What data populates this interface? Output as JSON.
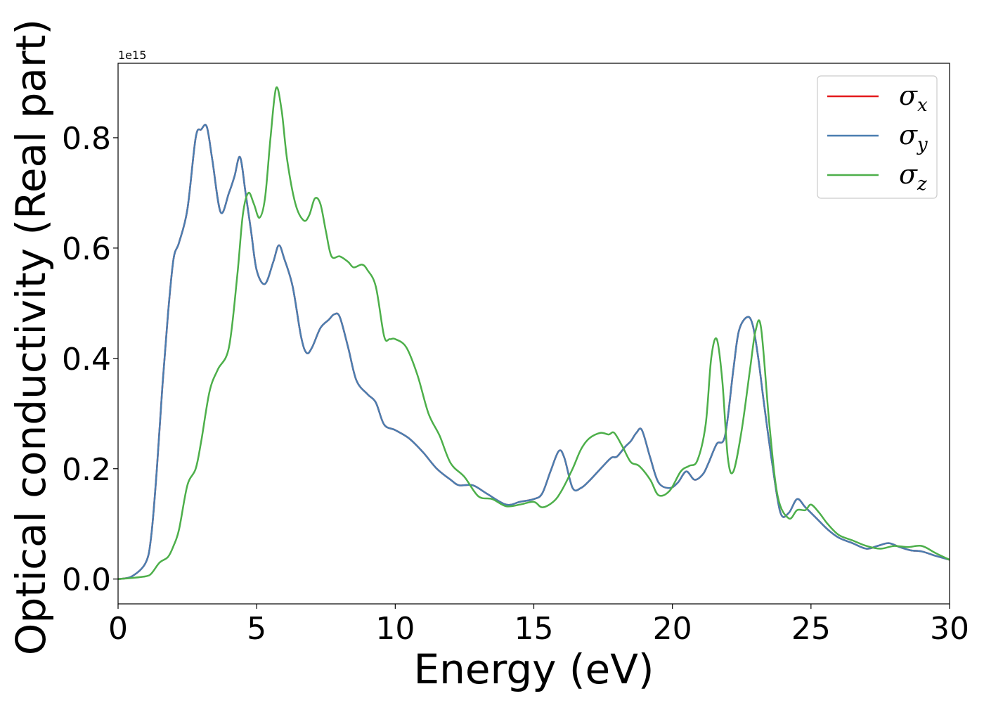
{
  "chart_data": {
    "type": "line",
    "title": "",
    "xlabel": "Energy (eV)",
    "ylabel": "Optical conductivity (Real part)",
    "y_offset_label": "1e15",
    "xlim": [
      0,
      30
    ],
    "ylim": [
      -0.045,
      0.935
    ],
    "xticks": [
      0,
      5,
      10,
      15,
      20,
      25,
      30
    ],
    "yticks": [
      0.0,
      0.2,
      0.4,
      0.6,
      0.8
    ],
    "yticklabels": [
      "0.0",
      "0.2",
      "0.4",
      "0.6",
      "0.8"
    ],
    "grid": false,
    "legend": "top-right",
    "series": [
      {
        "name": "σx",
        "legend_symbol": "σ",
        "legend_sub": "x",
        "color": "#e41a1c",
        "x": [
          0,
          0.5,
          1.0,
          1.2,
          1.4,
          1.6,
          1.8,
          2.0,
          2.2,
          2.5,
          2.8,
          3.0,
          3.2,
          3.4,
          3.7,
          4.0,
          4.2,
          4.4,
          4.6,
          4.8,
          5.0,
          5.3,
          5.6,
          5.8,
          6.0,
          6.3,
          6.6,
          6.8,
          7.0,
          7.3,
          7.6,
          7.8,
          8.0,
          8.3,
          8.6,
          9.0,
          9.3,
          9.6,
          10.0,
          10.5,
          11.0,
          11.5,
          12.0,
          12.3,
          12.8,
          13.3,
          14.0,
          14.5,
          15.0,
          15.3,
          15.6,
          15.9,
          16.1,
          16.4,
          16.7,
          17.0,
          17.5,
          17.8,
          18.0,
          18.3,
          18.5,
          18.7,
          18.9,
          19.2,
          19.5,
          19.9,
          20.2,
          20.5,
          20.8,
          21.1,
          21.3,
          21.6,
          21.9,
          22.2,
          22.4,
          22.7,
          22.9,
          23.1,
          23.3,
          23.6,
          23.9,
          24.2,
          24.5,
          24.8,
          25.2,
          25.6,
          26.0,
          26.5,
          27.0,
          27.4,
          27.8,
          28.2,
          28.6,
          29.0,
          29.5,
          30.0
        ],
        "y": [
          0.0,
          0.005,
          0.03,
          0.08,
          0.2,
          0.35,
          0.48,
          0.58,
          0.61,
          0.67,
          0.8,
          0.815,
          0.82,
          0.76,
          0.665,
          0.7,
          0.73,
          0.765,
          0.7,
          0.63,
          0.56,
          0.535,
          0.575,
          0.605,
          0.58,
          0.53,
          0.44,
          0.41,
          0.42,
          0.455,
          0.47,
          0.48,
          0.475,
          0.42,
          0.36,
          0.335,
          0.32,
          0.28,
          0.27,
          0.255,
          0.23,
          0.2,
          0.18,
          0.17,
          0.17,
          0.155,
          0.135,
          0.14,
          0.145,
          0.155,
          0.195,
          0.232,
          0.22,
          0.165,
          0.165,
          0.178,
          0.205,
          0.22,
          0.222,
          0.24,
          0.25,
          0.265,
          0.27,
          0.22,
          0.175,
          0.165,
          0.175,
          0.195,
          0.18,
          0.19,
          0.21,
          0.245,
          0.26,
          0.38,
          0.45,
          0.475,
          0.46,
          0.4,
          0.32,
          0.21,
          0.12,
          0.12,
          0.145,
          0.13,
          0.11,
          0.09,
          0.075,
          0.065,
          0.055,
          0.06,
          0.065,
          0.058,
          0.052,
          0.05,
          0.042,
          0.035
        ]
      },
      {
        "name": "σy",
        "legend_symbol": "σ",
        "legend_sub": "y",
        "color": "#4a7eb0",
        "x": [
          0,
          0.5,
          1.0,
          1.2,
          1.4,
          1.6,
          1.8,
          2.0,
          2.2,
          2.5,
          2.8,
          3.0,
          3.2,
          3.4,
          3.7,
          4.0,
          4.2,
          4.4,
          4.6,
          4.8,
          5.0,
          5.3,
          5.6,
          5.8,
          6.0,
          6.3,
          6.6,
          6.8,
          7.0,
          7.3,
          7.6,
          7.8,
          8.0,
          8.3,
          8.6,
          9.0,
          9.3,
          9.6,
          10.0,
          10.5,
          11.0,
          11.5,
          12.0,
          12.3,
          12.8,
          13.3,
          14.0,
          14.5,
          15.0,
          15.3,
          15.6,
          15.9,
          16.1,
          16.4,
          16.7,
          17.0,
          17.5,
          17.8,
          18.0,
          18.3,
          18.5,
          18.7,
          18.9,
          19.2,
          19.5,
          19.9,
          20.2,
          20.5,
          20.8,
          21.1,
          21.3,
          21.6,
          21.9,
          22.2,
          22.4,
          22.7,
          22.9,
          23.1,
          23.3,
          23.6,
          23.9,
          24.2,
          24.5,
          24.8,
          25.2,
          25.6,
          26.0,
          26.5,
          27.0,
          27.4,
          27.8,
          28.2,
          28.6,
          29.0,
          29.5,
          30.0
        ],
        "y": [
          0.0,
          0.005,
          0.03,
          0.08,
          0.2,
          0.35,
          0.48,
          0.58,
          0.61,
          0.67,
          0.8,
          0.815,
          0.82,
          0.76,
          0.665,
          0.7,
          0.73,
          0.765,
          0.7,
          0.63,
          0.56,
          0.535,
          0.575,
          0.605,
          0.58,
          0.53,
          0.44,
          0.41,
          0.42,
          0.455,
          0.47,
          0.48,
          0.475,
          0.42,
          0.36,
          0.335,
          0.32,
          0.28,
          0.27,
          0.255,
          0.23,
          0.2,
          0.18,
          0.17,
          0.17,
          0.155,
          0.135,
          0.14,
          0.145,
          0.155,
          0.195,
          0.232,
          0.22,
          0.165,
          0.165,
          0.178,
          0.205,
          0.22,
          0.222,
          0.24,
          0.25,
          0.265,
          0.27,
          0.22,
          0.175,
          0.165,
          0.175,
          0.195,
          0.18,
          0.19,
          0.21,
          0.245,
          0.26,
          0.38,
          0.45,
          0.475,
          0.46,
          0.4,
          0.32,
          0.21,
          0.12,
          0.12,
          0.145,
          0.13,
          0.11,
          0.09,
          0.075,
          0.065,
          0.055,
          0.06,
          0.065,
          0.058,
          0.052,
          0.05,
          0.042,
          0.035
        ]
      },
      {
        "name": "σz",
        "legend_symbol": "σ",
        "legend_sub": "z",
        "color": "#4daf4a",
        "x": [
          0,
          0.5,
          1.0,
          1.2,
          1.5,
          1.8,
          2.0,
          2.2,
          2.5,
          2.8,
          3.0,
          3.3,
          3.6,
          4.0,
          4.3,
          4.5,
          4.7,
          4.9,
          5.1,
          5.3,
          5.5,
          5.7,
          5.9,
          6.1,
          6.4,
          6.7,
          6.9,
          7.1,
          7.3,
          7.5,
          7.7,
          8.0,
          8.3,
          8.5,
          8.8,
          9.0,
          9.3,
          9.6,
          9.8,
          10.0,
          10.4,
          10.8,
          11.2,
          11.6,
          12.0,
          12.5,
          13.0,
          13.5,
          14.0,
          14.5,
          15.0,
          15.3,
          15.7,
          16.0,
          16.4,
          16.7,
          17.0,
          17.4,
          17.7,
          17.9,
          18.2,
          18.5,
          18.8,
          19.2,
          19.5,
          19.9,
          20.3,
          20.6,
          20.9,
          21.2,
          21.4,
          21.6,
          21.8,
          22.0,
          22.2,
          22.5,
          22.8,
          23.0,
          23.2,
          23.5,
          23.8,
          24.2,
          24.5,
          24.8,
          25.0,
          25.3,
          25.6,
          26.0,
          26.5,
          27.0,
          27.5,
          28.0,
          28.5,
          29.0,
          29.5,
          30.0
        ],
        "y": [
          0.0,
          0.002,
          0.005,
          0.01,
          0.03,
          0.04,
          0.06,
          0.09,
          0.17,
          0.2,
          0.25,
          0.34,
          0.38,
          0.42,
          0.55,
          0.66,
          0.7,
          0.68,
          0.655,
          0.69,
          0.8,
          0.89,
          0.85,
          0.76,
          0.68,
          0.65,
          0.66,
          0.69,
          0.68,
          0.63,
          0.585,
          0.585,
          0.575,
          0.565,
          0.57,
          0.56,
          0.53,
          0.44,
          0.435,
          0.435,
          0.42,
          0.37,
          0.3,
          0.26,
          0.21,
          0.185,
          0.15,
          0.145,
          0.132,
          0.135,
          0.14,
          0.13,
          0.14,
          0.16,
          0.2,
          0.235,
          0.255,
          0.265,
          0.262,
          0.265,
          0.24,
          0.212,
          0.205,
          0.18,
          0.152,
          0.16,
          0.195,
          0.205,
          0.215,
          0.28,
          0.4,
          0.435,
          0.36,
          0.22,
          0.195,
          0.27,
          0.38,
          0.45,
          0.455,
          0.28,
          0.15,
          0.11,
          0.125,
          0.125,
          0.135,
          0.12,
          0.1,
          0.08,
          0.07,
          0.06,
          0.055,
          0.06,
          0.058,
          0.06,
          0.047,
          0.035
        ]
      }
    ]
  }
}
